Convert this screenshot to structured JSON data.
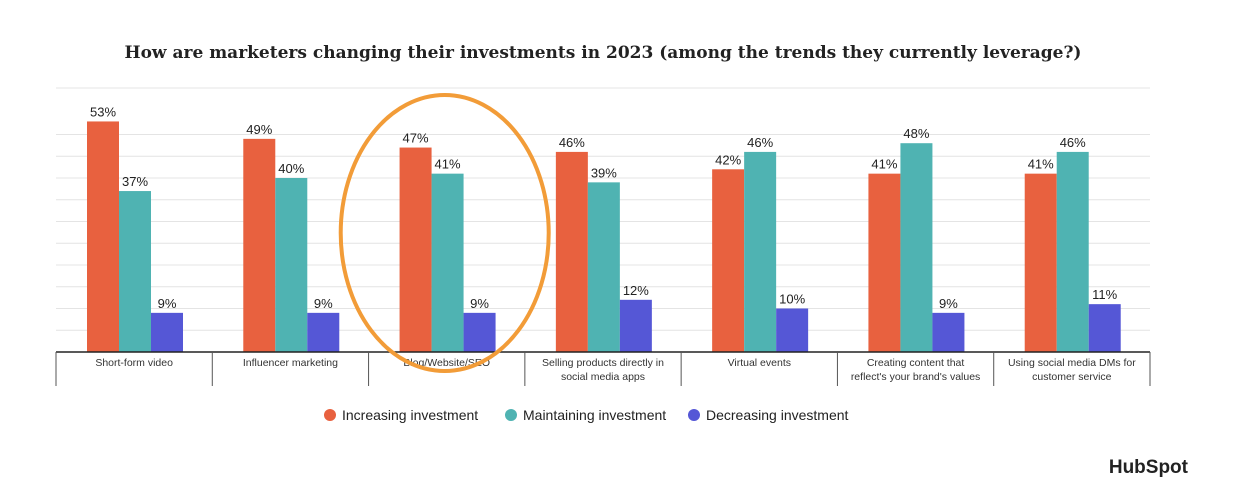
{
  "chart_data": {
    "type": "bar",
    "title": "How are marketers changing their investments in 2023 (among the trends they currently leverage?)",
    "categories": [
      [
        "Short-form video"
      ],
      [
        "Influencer marketing"
      ],
      [
        "Blog/Website/SEO"
      ],
      [
        "Selling products directly in",
        "social media apps"
      ],
      [
        "Virtual events"
      ],
      [
        "Creating content that",
        "reflect's your brand's values"
      ],
      [
        "Using social media DMs for",
        "customer service"
      ]
    ],
    "series": [
      {
        "name": "Increasing investment",
        "color": "#e8613f",
        "values": [
          53,
          49,
          47,
          46,
          42,
          41,
          41
        ]
      },
      {
        "name": "Maintaining investment",
        "color": "#4fb3b2",
        "values": [
          37,
          40,
          41,
          39,
          46,
          48,
          46
        ]
      },
      {
        "name": "Decreasing investment",
        "color": "#5557d6",
        "values": [
          9,
          9,
          9,
          12,
          10,
          9,
          11
        ]
      }
    ],
    "value_suffix": "%",
    "ylim": [
      0,
      60
    ],
    "grid": true,
    "legend_position": "bottom-center",
    "highlight": {
      "category_index": 2,
      "shape": "ellipse",
      "color": "#f29c38"
    }
  },
  "brand": {
    "text": "HubSpot"
  }
}
